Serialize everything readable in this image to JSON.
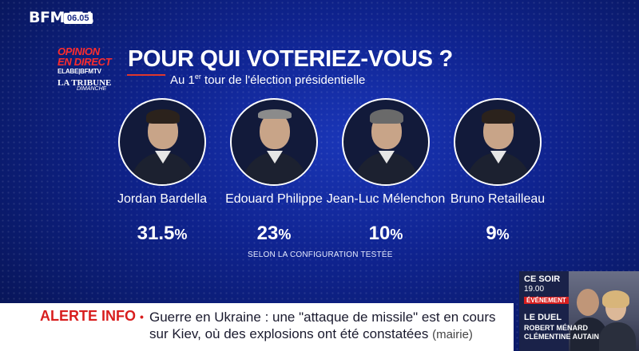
{
  "channel": {
    "logo": "BFM TV.",
    "time": "06.05"
  },
  "opinion": {
    "line1": "OPINION",
    "line2": "EN DIRECT",
    "elabe": "ELABE|BFMTV",
    "tribune": "LA TRIBUNE",
    "dimanche": "DIMANCHE"
  },
  "title": "POUR QUI VOTERIEZ-VOUS ?",
  "subtitle": {
    "prefix": "Au 1",
    "sup": "er",
    "suffix": " tour de l'élection présidentielle"
  },
  "candidates": [
    {
      "name": "Jordan Bardella",
      "pct": "31.5",
      "unit": "%"
    },
    {
      "name": "Edouard Philippe",
      "pct": "23",
      "unit": "%"
    },
    {
      "name": "Jean-Luc Mélenchon",
      "pct": "10",
      "unit": "%"
    },
    {
      "name": "Bruno Retailleau",
      "pct": "9",
      "unit": "%"
    }
  ],
  "config_note": "SELON LA CONFIGURATION TESTÉE",
  "ticker": {
    "label": "ALERTE INFO",
    "dot": "•",
    "headline": "Guerre en Ukraine : une \"attaque de missile\" est en cours sur Kiev, où des explosions ont été constatées",
    "source": "(mairie)"
  },
  "promo": {
    "line1": "CE SOIR",
    "line2": "19.00",
    "badge": "ÉVÉNEMENT",
    "show": "LE DUEL",
    "guest1": "ROBERT MÉNARD",
    "guest2": "CLÉMENTINE AUTAIN"
  },
  "colors": {
    "accent_red": "#d81e1e",
    "bg_blue": "#0f238f"
  }
}
